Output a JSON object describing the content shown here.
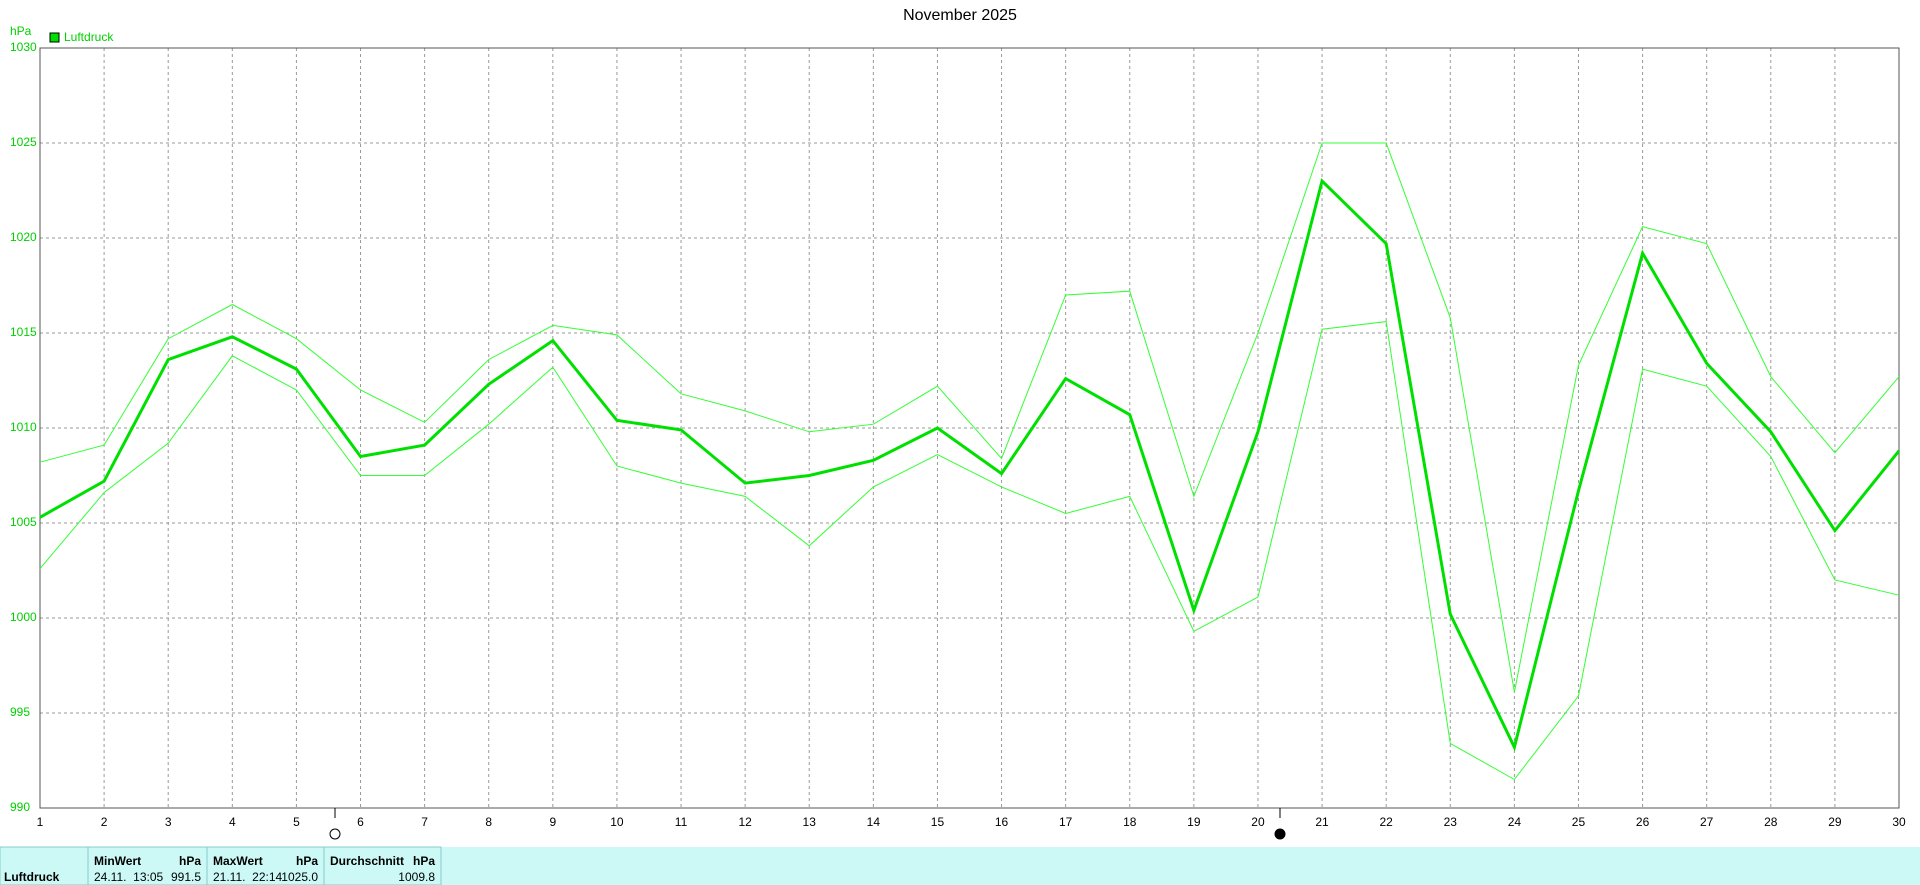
{
  "chart_data": {
    "type": "line",
    "title": "November 2025",
    "y_label": "hPa",
    "x": [
      1,
      2,
      3,
      4,
      5,
      6,
      7,
      8,
      9,
      10,
      11,
      12,
      13,
      14,
      15,
      16,
      17,
      18,
      19,
      20,
      21,
      22,
      23,
      24,
      25,
      26,
      27,
      28,
      29,
      30
    ],
    "series": [
      {
        "color": "#33ff33",
        "width": 1,
        "values": [
          1008.2,
          1009.1,
          1014.7,
          1016.5,
          1014.7,
          1012.0,
          1010.3,
          1013.6,
          1015.4,
          1014.9,
          1011.8,
          1010.9,
          1009.8,
          1010.2,
          1012.2,
          1008.4,
          1017.0,
          1017.2,
          1006.4,
          1015.0,
          1025.0,
          1025.0,
          1015.8,
          996.1,
          1013.3,
          1020.6,
          1019.7,
          1012.7,
          1008.7,
          1012.7
        ]
      },
      {
        "name": "Luftdruck",
        "color": "#00e000",
        "width": 3,
        "values": [
          1005.3,
          1007.2,
          1013.6,
          1014.8,
          1013.1,
          1008.5,
          1009.1,
          1012.3,
          1014.6,
          1010.4,
          1009.9,
          1007.1,
          1007.5,
          1008.3,
          1010.0,
          1007.6,
          1012.6,
          1010.7,
          1000.4,
          1009.8,
          1023.0,
          1019.7,
          1000.2,
          993.2,
          1006.7,
          1019.2,
          1013.4,
          1009.8,
          1004.6,
          1008.8
        ]
      },
      {
        "color": "#33ff33",
        "width": 1,
        "values": [
          1002.6,
          1006.6,
          1009.2,
          1013.8,
          1012.0,
          1007.5,
          1007.5,
          1010.2,
          1013.2,
          1008.0,
          1007.1,
          1006.4,
          1003.8,
          1006.9,
          1008.6,
          1006.9,
          1005.5,
          1006.4,
          999.3,
          1001.1,
          1015.2,
          1015.6,
          993.4,
          991.5,
          995.9,
          1013.1,
          1012.2,
          1008.5,
          1002.0,
          1001.2
        ]
      }
    ],
    "xlim": [
      1,
      30
    ],
    "xticks": [
      1,
      2,
      3,
      4,
      5,
      6,
      7,
      8,
      9,
      10,
      11,
      12,
      13,
      14,
      15,
      16,
      17,
      18,
      19,
      20,
      21,
      22,
      23,
      24,
      25,
      26,
      27,
      28,
      29,
      30
    ],
    "ylim": [
      990,
      1030
    ],
    "yticks": [
      990,
      995,
      1000,
      1005,
      1010,
      1015,
      1020,
      1025,
      1030
    ],
    "grid": true
  },
  "footer": {
    "label": "Luftdruck",
    "columns": [
      {
        "title": "MinWert",
        "unit": "hPa",
        "time": "24.11.  13:05",
        "value": "991.5"
      },
      {
        "title": "MaxWert",
        "unit": "hPa",
        "time": "21.11.  22:14",
        "value": "1025.0"
      },
      {
        "title": "Durchschnitt",
        "unit": "hPa",
        "value": "1009.8"
      }
    ]
  }
}
